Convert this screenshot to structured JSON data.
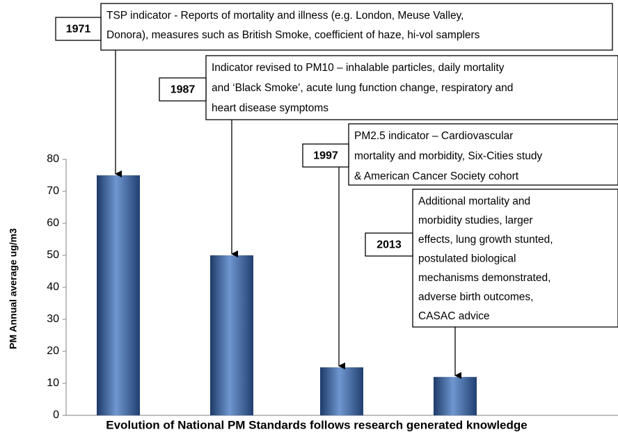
{
  "chart_data": {
    "type": "bar",
    "y_label": "PM Annual average ug/m3",
    "x_label": "Evolution of National PM Standards follows research generated knowledge",
    "values": [
      75,
      50,
      15,
      12
    ],
    "color": "#3a64a3",
    "ylim": [
      0,
      80
    ],
    "yticks": [
      0,
      10,
      20,
      30,
      40,
      50,
      60,
      70,
      80
    ],
    "annotations": [
      {
        "year": "1971",
        "lines": [
          "TSP indicator - Reports of mortality and illness (e.g. London,  Meuse Valley,",
          "Donora), measures such as British Smoke, coefficient of haze, hi-vol samplers"
        ]
      },
      {
        "year": "1987",
        "lines": [
          "Indicator revised to PM10 – inhalable particles, daily mortality",
          "and ‘Black Smoke’, acute lung function change, respiratory and",
          "heart disease symptoms"
        ]
      },
      {
        "year": "1997",
        "lines": [
          "PM2.5 indicator – Cardiovascular",
          "mortality and morbidity, Six-Cities study",
          "& American Cancer Society cohort"
        ]
      },
      {
        "year": "2013",
        "lines": [
          "Additional mortality and",
          "morbidity studies, larger",
          "effects, lung growth stunted,",
          "postulated biological",
          "mechanisms demonstrated,",
          "adverse birth outcomes,",
          "CASAC advice"
        ]
      }
    ]
  }
}
